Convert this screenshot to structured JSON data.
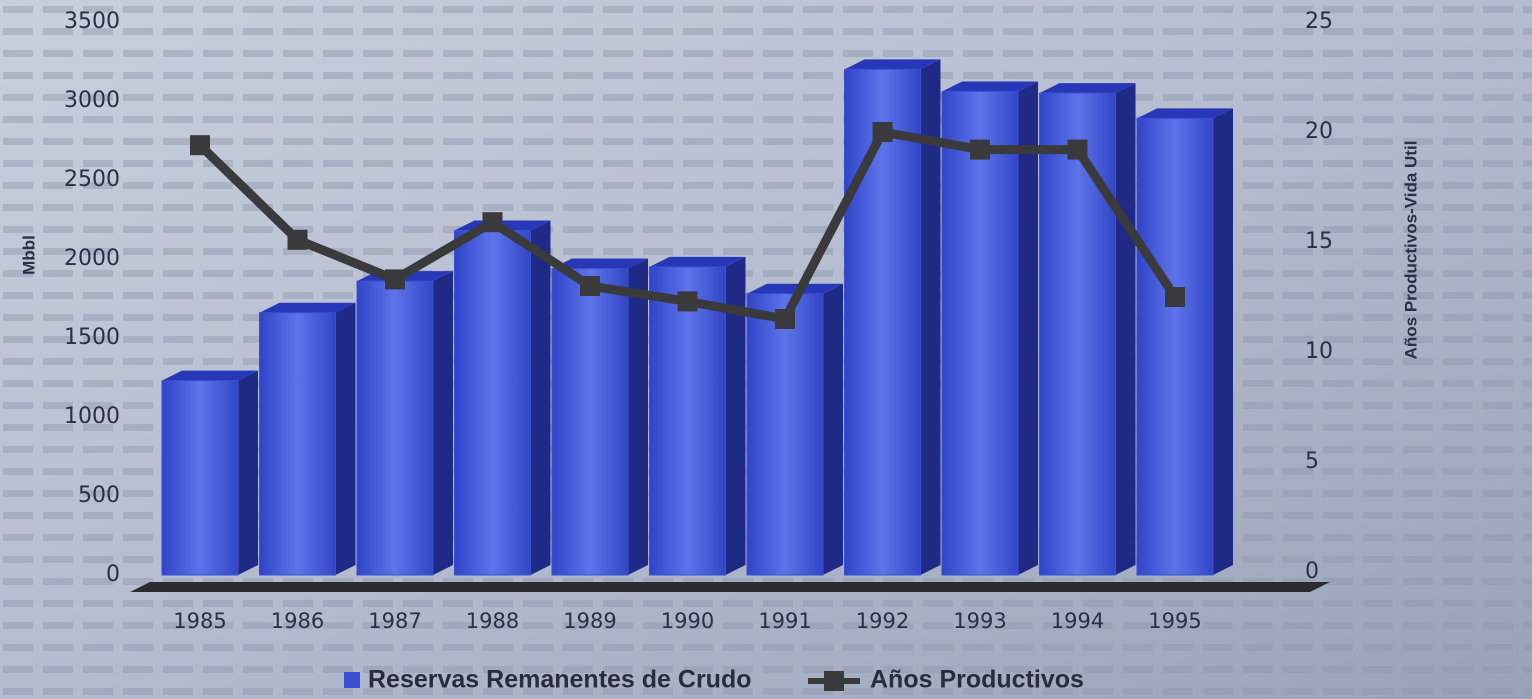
{
  "chart_data": {
    "type": "bar-line",
    "categories": [
      "1985",
      "1986",
      "1987",
      "1988",
      "1989",
      "1990",
      "1991",
      "1992",
      "1993",
      "1994",
      "1995"
    ],
    "ylabel": "Mbbl",
    "y2label": "Años Productivos-Vida Util",
    "ylim": [
      0,
      3500
    ],
    "yticks": [
      0,
      500,
      1000,
      1500,
      2000,
      2500,
      3000,
      3500
    ],
    "y2lim": [
      0,
      25
    ],
    "y2ticks": [
      0,
      5,
      10,
      15,
      20,
      25
    ],
    "series": [
      {
        "name": "Reservas Remanentes de Crudo",
        "type": "bar",
        "color": "#3b50d2",
        "values": [
          1230,
          1660,
          1860,
          2180,
          1940,
          1950,
          1780,
          3200,
          3060,
          3050,
          2890
        ]
      },
      {
        "name": "Años Productivos",
        "type": "line",
        "axis": "y2",
        "color": "#3a3a3c",
        "values": [
          19.4,
          15.1,
          13.3,
          15.9,
          13.0,
          12.3,
          11.5,
          20.0,
          19.2,
          19.2,
          12.5
        ]
      }
    ]
  }
}
